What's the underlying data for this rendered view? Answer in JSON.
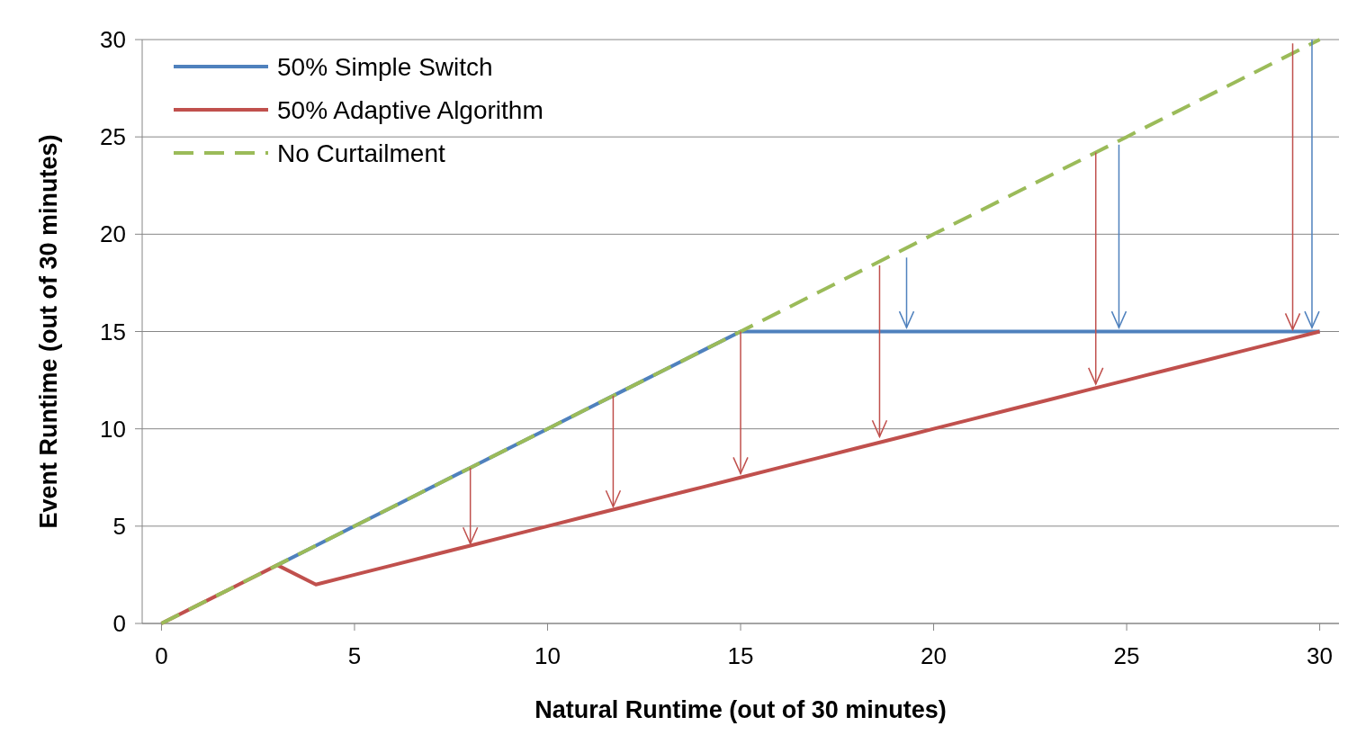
{
  "chart_data": {
    "type": "line",
    "xlabel": "Natural Runtime (out of 30 minutes)",
    "ylabel": "Event Runtime (out of 30 minutes)",
    "x": [
      0,
      1,
      2,
      3,
      4,
      5,
      6,
      7,
      8,
      9,
      10,
      11,
      12,
      13,
      14,
      15,
      16,
      17,
      18,
      19,
      20,
      21,
      22,
      23,
      24,
      25,
      26,
      27,
      28,
      29,
      30
    ],
    "xlim": [
      -0.5,
      30.5
    ],
    "xticks": [
      0,
      5,
      10,
      15,
      20,
      25,
      30
    ],
    "ylim": [
      0,
      30
    ],
    "yticks": [
      0,
      5,
      10,
      15,
      20,
      25,
      30
    ],
    "grid": "y",
    "legend": "top left",
    "marker": "none",
    "series": [
      {
        "name": "50% Simple Switch",
        "color": "#4f81bd",
        "line_style": "solid",
        "values": [
          null,
          null,
          null,
          3,
          4,
          5,
          6,
          7,
          8,
          9,
          10,
          11,
          12,
          13,
          14,
          15,
          15,
          15,
          15,
          15,
          15,
          15,
          15,
          15,
          15,
          15,
          15,
          15,
          15,
          15,
          15
        ]
      },
      {
        "name": "50% Adaptive Algorithm",
        "color": "#c0504d",
        "line_style": "solid",
        "values": [
          0,
          1,
          2,
          3,
          2,
          2.5,
          3,
          3.5,
          4,
          4.5,
          5,
          5.5,
          6,
          6.5,
          7,
          7.5,
          8,
          8.5,
          9,
          9.5,
          10,
          10.5,
          11,
          11.5,
          12,
          12.5,
          13,
          13.5,
          14,
          14.5,
          15
        ]
      },
      {
        "name": "No Curtailment",
        "color": "#9bbb59",
        "line_style": "dashed",
        "values": [
          0,
          1,
          2,
          3,
          4,
          5,
          6,
          7,
          8,
          9,
          10,
          11,
          12,
          13,
          14,
          15,
          16,
          17,
          18,
          19,
          20,
          21,
          22,
          23,
          24,
          25,
          26,
          27,
          28,
          29,
          30
        ]
      }
    ]
  }
}
